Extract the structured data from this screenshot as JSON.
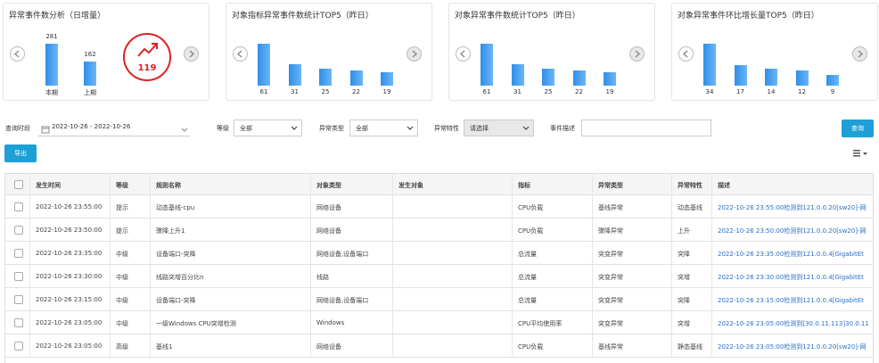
{
  "panels": [
    {
      "title": "异常事件数分析（日增量）",
      "categories": [
        "本期",
        "上期"
      ],
      "values": [
        281,
        162
      ],
      "change": 119
    },
    {
      "title": "对象指标异常事件数统计TOP5（昨日）",
      "values": [
        61,
        31,
        25,
        22,
        19
      ]
    },
    {
      "title": "对象异常事件数统计TOP5（昨日）",
      "values": [
        61,
        31,
        25,
        22,
        19
      ]
    },
    {
      "title": "对象异常事件环比增长量TOP5（昨日）",
      "values": [
        34,
        17,
        14,
        12,
        9
      ]
    }
  ],
  "filters": {
    "period_label": "查询时段",
    "period": "2022-10-26 - 2022-10-26",
    "level_label": "等级",
    "level": "全部",
    "type_label": "异常类型",
    "type": "全部",
    "feature_label": "异常特性",
    "feature": "请选择",
    "desc_label": "事件描述"
  },
  "buttons": {
    "query": "查询",
    "export": "导出"
  },
  "table": {
    "headers": [
      "发生时间",
      "等级",
      "规则名称",
      "对象类型",
      "发生对象",
      "指标",
      "异常类型",
      "异常特性",
      "描述"
    ],
    "rows": [
      {
        "time": "2022-10-26 23:55:00",
        "level": "提示",
        "rule": "动态基线-cpu",
        "object_type": "网络设备",
        "metric": "CPU负载",
        "anomaly_type": "基线异常",
        "feature": "动态基线",
        "description": "2022-10-26 23:55:00检测到121.0.0.20[sw20]-网"
      },
      {
        "time": "2022-10-26 23:50:00",
        "level": "提示",
        "rule": "骤降上升1",
        "object_type": "网络设备",
        "metric": "CPU负载",
        "anomaly_type": "骤降异常",
        "feature": "上升",
        "description": "2022-10-26 23:50:00检测到121.0.0.20[sw20]-网"
      },
      {
        "time": "2022-10-26 23:35:00",
        "level": "中级",
        "rule": "设备端口-突降",
        "object_type": "网络设备,设备端口",
        "metric": "总流量",
        "anomaly_type": "突变异常",
        "feature": "突降",
        "description": "2022-10-26 23:35:00检测到121.0.0.4[GigabitEt"
      },
      {
        "time": "2022-10-26 23:30:00",
        "level": "中级",
        "rule": "线路突增百分比n",
        "object_type": "线路",
        "metric": "总流量",
        "anomaly_type": "突变异常",
        "feature": "突增",
        "description": "2022-10-26 23:30:00检测到121.0.0.4[GigabitEt"
      },
      {
        "time": "2022-10-26 23:15:00",
        "level": "中级",
        "rule": "设备端口-突降",
        "object_type": "网络设备,设备端口",
        "metric": "总流量",
        "anomaly_type": "突变异常",
        "feature": "突降",
        "description": "2022-10-26 23:15:00检测到121.0.0.4[GigabitEt"
      },
      {
        "time": "2022-10-26 23:05:00",
        "level": "中级",
        "rule": "一级Windows CPU突增检测",
        "object_type": "Windows",
        "metric": "CPU平均使用率",
        "anomaly_type": "突变异常",
        "feature": "突增",
        "description": "2022-10-26 23:05:00检测到[30.0.11.113]30.0.11"
      },
      {
        "time": "2022-10-26 23:05:00",
        "level": "高级",
        "rule": "基线1",
        "object_type": "网络设备",
        "metric": "CPU负载",
        "anomaly_type": "基线异常",
        "feature": "静态基线",
        "description": "2022-10-26 23:05:00检测到121.0.0.20[sw20]-网"
      }
    ]
  }
}
